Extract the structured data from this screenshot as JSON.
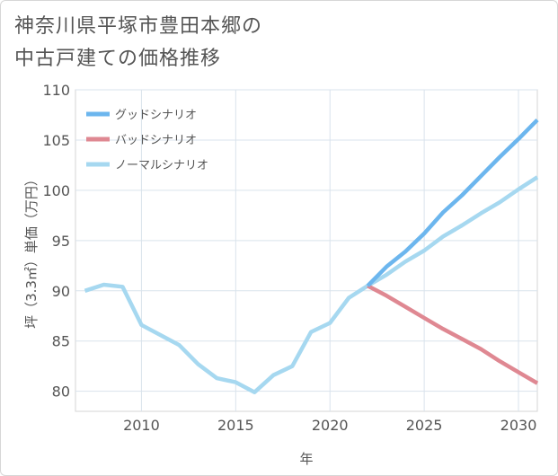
{
  "title_line1": "神奈川県平塚市豊田本郷の",
  "title_line2": "中古戸建ての価格推移",
  "chart_data": {
    "type": "line",
    "title": "神奈川県平塚市豊田本郷の中古戸建ての価格推移",
    "xlabel": "年",
    "ylabel": "坪（3.3㎡）単価（万円）",
    "xlim": [
      2006.5,
      2031
    ],
    "ylim": [
      78,
      110
    ],
    "xticks": [
      2010,
      2015,
      2020,
      2025,
      2030
    ],
    "yticks": [
      80,
      85,
      90,
      95,
      100,
      105,
      110
    ],
    "grid": true,
    "legend_position": "top-left",
    "series": [
      {
        "name": "グッドシナリオ",
        "color": "#6cb6ee",
        "x": [
          2022,
          2023,
          2024,
          2025,
          2026,
          2027,
          2028,
          2029,
          2030,
          2031
        ],
        "y": [
          90.5,
          92.4,
          93.9,
          95.7,
          97.8,
          99.5,
          101.4,
          103.3,
          105.1,
          107.0
        ]
      },
      {
        "name": "バッドシナリオ",
        "color": "#df8892",
        "x": [
          2022,
          2023,
          2024,
          2025,
          2026,
          2027,
          2028,
          2029,
          2030,
          2031
        ],
        "y": [
          90.5,
          89.5,
          88.4,
          87.3,
          86.2,
          85.2,
          84.2,
          83.0,
          81.9,
          80.8
        ]
      },
      {
        "name": "ノーマルシナリオ",
        "color": "#a6d8f0",
        "x": [
          2007,
          2008,
          2009,
          2010,
          2011,
          2012,
          2013,
          2014,
          2015,
          2016,
          2017,
          2018,
          2019,
          2020,
          2021,
          2022,
          2023,
          2024,
          2025,
          2026,
          2027,
          2028,
          2029,
          2030,
          2031
        ],
        "y": [
          90.0,
          90.6,
          90.4,
          86.6,
          85.6,
          84.6,
          82.7,
          81.3,
          80.9,
          79.9,
          81.6,
          82.5,
          85.9,
          86.8,
          89.3,
          90.5,
          91.6,
          92.9,
          94.0,
          95.4,
          96.5,
          97.7,
          98.8,
          100.1,
          101.3
        ]
      }
    ]
  }
}
